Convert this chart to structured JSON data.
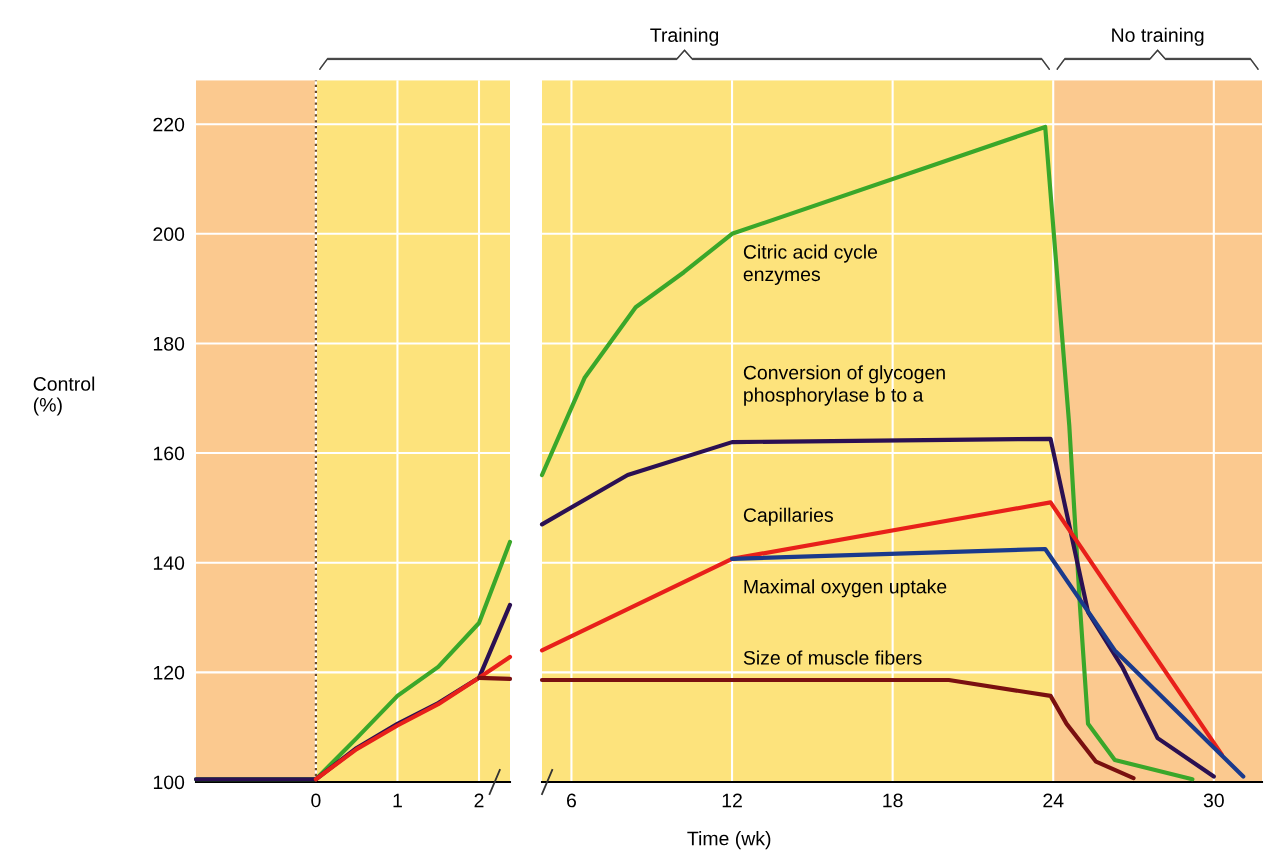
{
  "chart_data": [
    {
      "type": "line",
      "ylabel": "Control\n(%)",
      "xlim": [
        -1.47,
        2.38
      ],
      "xticks": [
        0,
        1,
        2
      ],
      "ylim": [
        100,
        228
      ],
      "yticks": [
        100,
        120,
        140,
        160,
        180,
        200,
        220
      ],
      "grid": true,
      "tick_labels": "xy",
      "bands": [
        {
          "axis": "x",
          "from": -1.47,
          "to": 0,
          "color": "#fbc98f"
        },
        {
          "axis": "x",
          "from": 0,
          "to": 24,
          "color": "#fde37c"
        }
      ],
      "ref_lines": [
        {
          "axis": "x",
          "value": 0,
          "color": "#6b4a2a",
          "line_style": "dotted"
        }
      ],
      "series": [
        {
          "color": "#3aa72a",
          "x": [
            -1.47,
            0,
            0.5,
            1,
            1.5,
            2,
            2.38
          ],
          "values": [
            100.5,
            100.5,
            108,
            115.7,
            121,
            129,
            143.8
          ]
        },
        {
          "color": "#2b1052",
          "x": [
            -1.47,
            0,
            0.5,
            1,
            1.5,
            2,
            2.38
          ],
          "values": [
            100.5,
            100.5,
            106.2,
            110.6,
            114.4,
            119,
            132.3
          ]
        },
        {
          "color": "#e8201a",
          "x": [
            0,
            0.5,
            1,
            1.5,
            2,
            2.38
          ],
          "values": [
            100.5,
            106,
            110.3,
            114.2,
            119,
            122.8
          ]
        },
        {
          "color": "#7a1010",
          "x": [
            2,
            2.38
          ],
          "values": [
            119,
            118.8
          ]
        }
      ]
    },
    {
      "type": "line",
      "xlabel": "Time (wk)",
      "xlim": [
        4.9,
        31.8
      ],
      "xticks": [
        6,
        12,
        18,
        24,
        30
      ],
      "ylim": [
        100,
        228
      ],
      "yticks": [
        100,
        120,
        140,
        160,
        180,
        200,
        220
      ],
      "grid": true,
      "tick_labels": "x",
      "bands": [
        {
          "axis": "x",
          "from": 0,
          "to": 24,
          "color": "#fde37c",
          "label": "Training"
        },
        {
          "axis": "x",
          "from": 24,
          "to": 31.8,
          "color": "#fbc98f",
          "label": "No training"
        }
      ],
      "series": [
        {
          "name": "Citric acid cycle\nenzymes",
          "color": "#3aa72a",
          "x": [
            4.9,
            6.5,
            8.4,
            10.2,
            12,
            23.7,
            24.6,
            25.0,
            25.3,
            26.3,
            29.2
          ],
          "values": [
            156,
            173.8,
            186.6,
            193,
            200,
            219.5,
            165,
            132,
            110.6,
            104,
            100.5
          ]
        },
        {
          "name": "Conversion of glycogen\nphosphorylase b to a",
          "color": "#2b1052",
          "x": [
            4.9,
            8.1,
            12,
            23.9,
            25.3,
            26.6,
            27.9,
            30
          ],
          "values": [
            147,
            156,
            162,
            162.6,
            131,
            120.8,
            108,
            101
          ]
        },
        {
          "name": "Capillaries",
          "color": "#e8201a",
          "x": [
            4.9,
            12,
            23.9,
            30.3
          ],
          "values": [
            124,
            140.7,
            151,
            105
          ]
        },
        {
          "name": "Maximal oxygen uptake",
          "color": "#1a3a8c",
          "x": [
            12,
            23.7,
            26.3,
            31.1
          ],
          "values": [
            140.7,
            142.5,
            124,
            101
          ]
        },
        {
          "name": "Size of muscle fibers",
          "color": "#7a1010",
          "x": [
            4.9,
            20.1,
            23.9,
            24.5,
            25.6,
            27
          ],
          "values": [
            118.6,
            118.6,
            115.7,
            110.6,
            103.7,
            100.7
          ]
        }
      ]
    }
  ]
}
